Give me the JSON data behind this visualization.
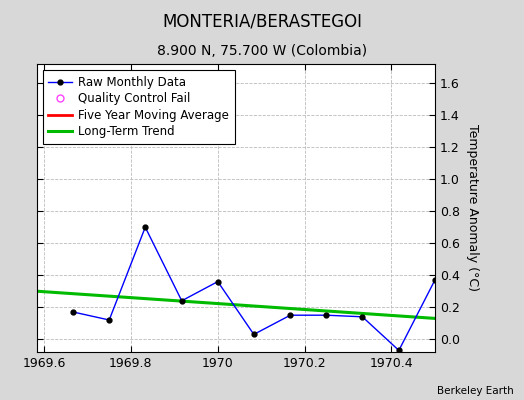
{
  "title": "MONTERIA/BERASTEGOI",
  "subtitle": "8.900 N, 75.700 W (Colombia)",
  "credit": "Berkeley Earth",
  "ylabel": "Temperature Anomaly (°C)",
  "x_data": [
    1969.667,
    1969.75,
    1969.833,
    1969.917,
    1970.0,
    1970.083,
    1970.167,
    1970.25,
    1970.333,
    1970.417,
    1970.5
  ],
  "y_data": [
    0.17,
    0.12,
    0.7,
    0.24,
    0.36,
    0.03,
    0.15,
    0.15,
    0.14,
    -0.07,
    0.37
  ],
  "trend_x": [
    1969.583,
    1970.5
  ],
  "trend_y": [
    0.3,
    0.13
  ],
  "xlim": [
    1969.583,
    1970.5
  ],
  "ylim": [
    -0.08,
    1.72
  ],
  "yticks": [
    0,
    0.2,
    0.4,
    0.6,
    0.8,
    1.0,
    1.2,
    1.4,
    1.6
  ],
  "xticks": [
    1969.6,
    1969.8,
    1970.0,
    1970.2,
    1970.4
  ],
  "raw_color": "#0000ff",
  "raw_marker_color": "#000000",
  "trend_color": "#00bb00",
  "moving_avg_color": "#ff0000",
  "qc_color": "#ff44ff",
  "bg_color": "#d8d8d8",
  "plot_bg": "#ffffff",
  "grid_color": "#bbbbbb",
  "title_fontsize": 12,
  "subtitle_fontsize": 10,
  "label_fontsize": 9,
  "tick_fontsize": 9,
  "legend_fontsize": 8.5
}
